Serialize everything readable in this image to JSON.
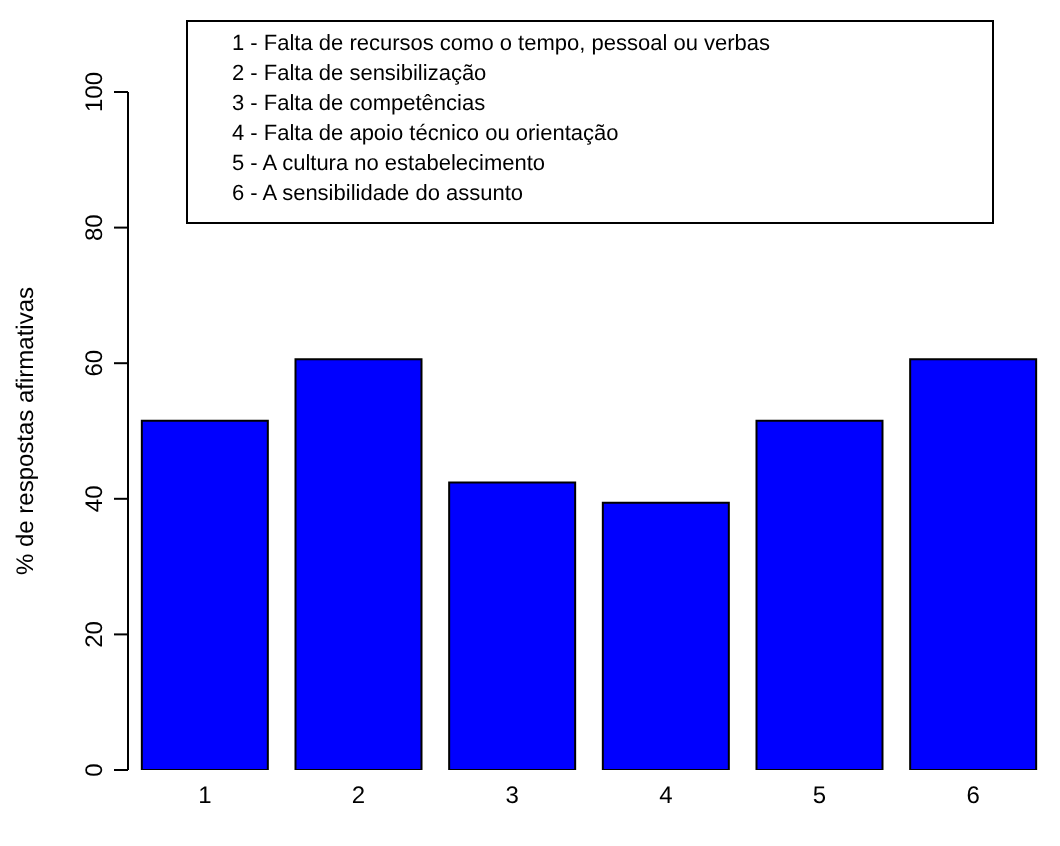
{
  "chart_data": {
    "type": "bar",
    "ylabel": "% de respostas afirmativas",
    "categories": [
      "1",
      "2",
      "3",
      "4",
      "5",
      "6"
    ],
    "values": [
      51.5,
      60.6,
      42.4,
      39.4,
      51.5,
      60.6
    ],
    "color": "#0000ff",
    "ylim": [
      0,
      100
    ],
    "yticks": [
      0,
      20,
      40,
      60,
      80,
      100
    ],
    "annotations": [
      "1 - Falta de recursos como o tempo, pessoal ou verbas",
      "2 - Falta de sensibilização",
      "3 - Falta de competências",
      "4 - Falta de apoio técnico ou orientação",
      "5 - A cultura no estabelecimento",
      "6 - A sensibilidade do assunto"
    ]
  }
}
